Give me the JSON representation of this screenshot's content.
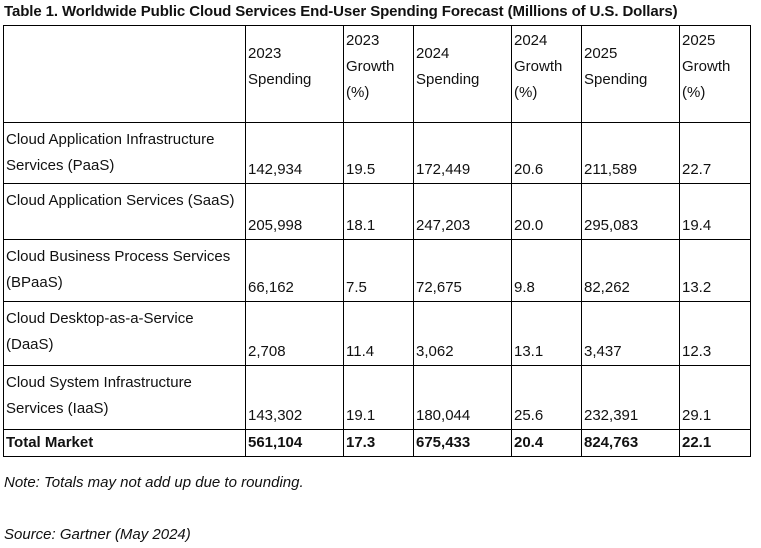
{
  "title": "Table 1. Worldwide Public Cloud Services End-User Spending Forecast (Millions of U.S. Dollars)",
  "headers": [
    "",
    "2023 Spending",
    "2023 Growth (%)",
    "2024 Spending",
    "2024 Growth (%)",
    "2025 Spending",
    "2025 Growth (%)"
  ],
  "rows": [
    {
      "segment": "Cloud Application Infrastructure Services (PaaS)",
      "s2023": "142,934",
      "g2023": "19.5",
      "s2024": "172,449",
      "g2024": "20.6",
      "s2025": "211,589",
      "g2025": "22.7"
    },
    {
      "segment": "Cloud Application Services (SaaS)",
      "s2023": "205,998",
      "g2023": "18.1",
      "s2024": "247,203",
      "g2024": "20.0",
      "s2025": "295,083",
      "g2025": "19.4"
    },
    {
      "segment": "Cloud Business Process Services (BPaaS)",
      "s2023": "66,162",
      "g2023": "7.5",
      "s2024": "72,675",
      "g2024": "9.8",
      "s2025": "82,262",
      "g2025": "13.2"
    },
    {
      "segment": "Cloud Desktop-as-a-Service (DaaS)",
      "s2023": "2,708",
      "g2023": "11.4",
      "s2024": "3,062",
      "g2024": "13.1",
      "s2025": "3,437",
      "g2025": "12.3"
    },
    {
      "segment": "Cloud System Infrastructure Services (IaaS)",
      "s2023": "143,302",
      "g2023": "19.1",
      "s2024": "180,044",
      "g2024": "25.6",
      "s2025": "232,391",
      "g2025": "29.1"
    }
  ],
  "total": {
    "segment": "Total Market",
    "s2023": "561,104",
    "g2023": "17.3",
    "s2024": "675,433",
    "g2024": "20.4",
    "s2025": "824,763",
    "g2025": "22.1"
  },
  "note": "Note: Totals may not add up due to rounding.",
  "source": "Source: Gartner (May 2024)"
}
